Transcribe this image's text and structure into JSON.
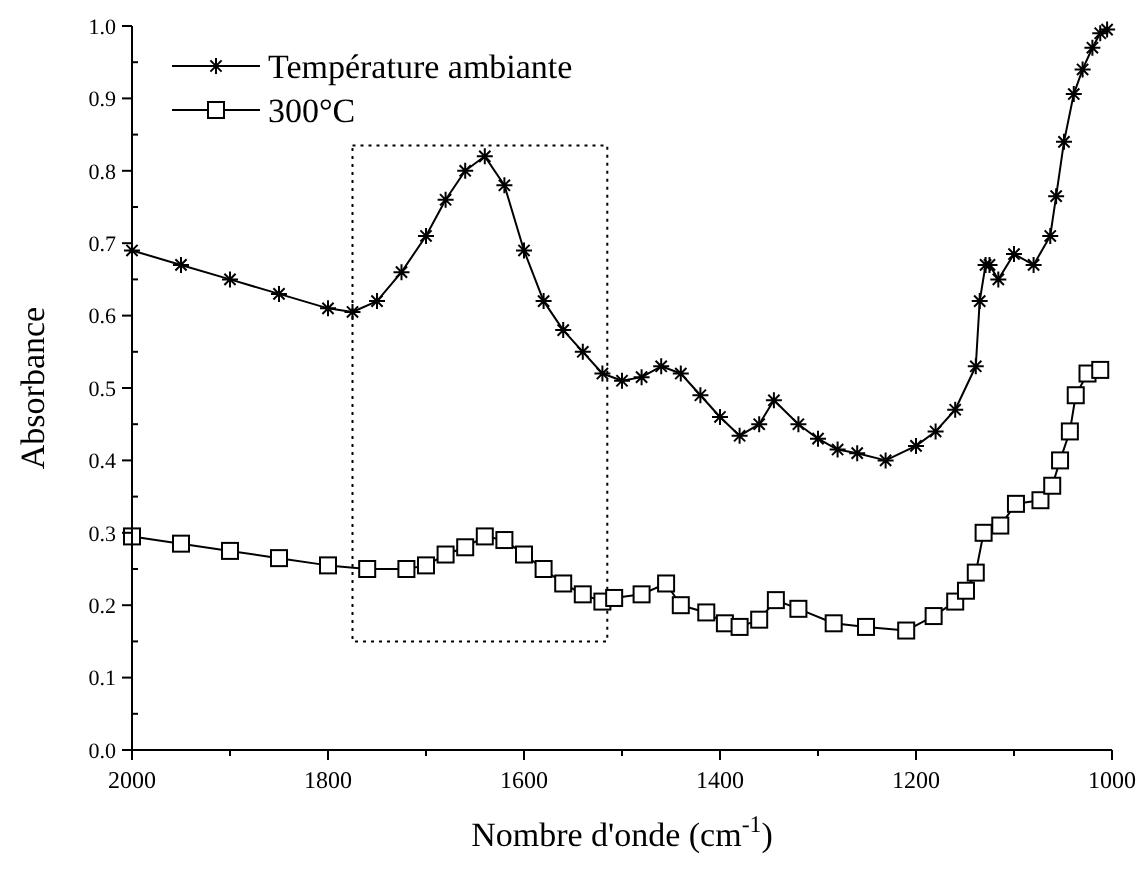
{
  "chart_data": {
    "type": "line",
    "xlabel": "Nombre d'onde (cm$^{-1}$)",
    "ylabel": "Absorbance",
    "xlim": [
      2000,
      1000
    ],
    "ylim": [
      0,
      1
    ],
    "xticks": [
      2000,
      1800,
      1600,
      1400,
      1200,
      1000
    ],
    "yticks": [
      {
        "value": 0,
        "label": "0.0"
      },
      0.1,
      0.2,
      0.3,
      0.4,
      0.5,
      0.6,
      0.7,
      0.8,
      0.9,
      {
        "value": 1,
        "label": "1.0"
      }
    ],
    "legend": "top left",
    "grid": false,
    "line_style": "solid",
    "series": [
      {
        "name": "Température ambiante",
        "color": "#000000",
        "marker": "cross",
        "x": [
          2000,
          1950,
          1900,
          1850,
          1800,
          1775,
          1750,
          1725,
          1700,
          1680,
          1660,
          1640,
          1620,
          1600,
          1580,
          1560,
          1540,
          1520,
          1500,
          1480,
          1460,
          1440,
          1420,
          1400,
          1380,
          1360,
          1345,
          1320,
          1300,
          1280,
          1260,
          1231,
          1200,
          1180,
          1160,
          1139,
          1135,
          1129,
          1125,
          1116,
          1100,
          1080,
          1063,
          1057,
          1049,
          1039,
          1030,
          1020,
          1012,
          1005
        ],
        "values": [
          0.69,
          0.67,
          0.65,
          0.63,
          0.61,
          0.605,
          0.62,
          0.66,
          0.71,
          0.76,
          0.8,
          0.82,
          0.78,
          0.69,
          0.62,
          0.58,
          0.55,
          0.52,
          0.51,
          0.515,
          0.53,
          0.52,
          0.49,
          0.46,
          0.434,
          0.45,
          0.483,
          0.45,
          0.43,
          0.415,
          0.41,
          0.4,
          0.42,
          0.44,
          0.47,
          0.53,
          0.62,
          0.67,
          0.67,
          0.65,
          0.685,
          0.67,
          0.71,
          0.765,
          0.84,
          0.906,
          0.94,
          0.97,
          0.99,
          0.995
        ]
      },
      {
        "name": "300°C",
        "color": "#000000",
        "marker": "square",
        "x": [
          2000,
          1950,
          1900,
          1850,
          1800,
          1760,
          1720,
          1700,
          1680,
          1660,
          1640,
          1620,
          1600,
          1580,
          1560,
          1540,
          1520,
          1508,
          1480,
          1455,
          1440,
          1414,
          1395,
          1380,
          1360,
          1343,
          1320,
          1284,
          1251,
          1210,
          1182,
          1160,
          1149,
          1139,
          1131,
          1114,
          1098,
          1073,
          1061,
          1053,
          1043,
          1037,
          1025,
          1012
        ],
        "values": [
          0.295,
          0.285,
          0.275,
          0.265,
          0.255,
          0.25,
          0.25,
          0.255,
          0.27,
          0.28,
          0.295,
          0.29,
          0.27,
          0.25,
          0.23,
          0.215,
          0.205,
          0.21,
          0.215,
          0.23,
          0.2,
          0.19,
          0.175,
          0.17,
          0.18,
          0.207,
          0.195,
          0.175,
          0.17,
          0.165,
          0.185,
          0.205,
          0.22,
          0.245,
          0.3,
          0.31,
          0.34,
          0.345,
          0.365,
          0.4,
          0.44,
          0.49,
          0.52,
          0.525
        ]
      }
    ]
  }
}
